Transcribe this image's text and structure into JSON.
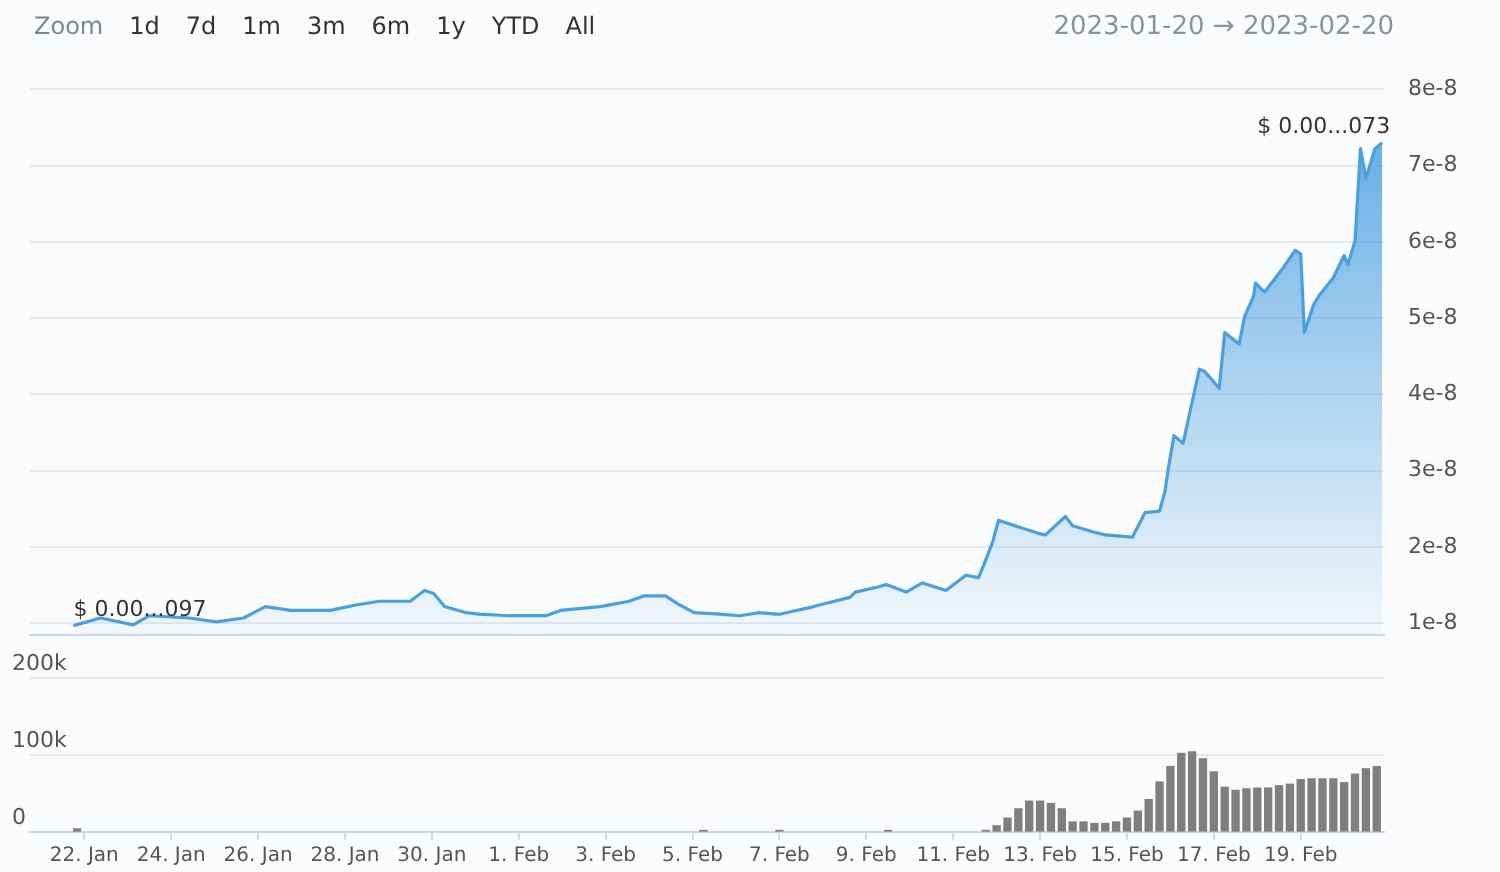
{
  "chart_data": [
    {
      "type": "area",
      "x": [
        "2023-01-21T18:00",
        "2023-01-22T09:00",
        "2023-01-23T03:00",
        "2023-01-23T12:00",
        "2023-01-24T10:00",
        "2023-01-25T01:00",
        "2023-01-25T16:00",
        "2023-01-26T04:00",
        "2023-01-26T18:00",
        "2023-01-27T16:00",
        "2023-01-28T06:00",
        "2023-01-28T19:00",
        "2023-01-29T12:00",
        "2023-01-29T20:00",
        "2023-01-30T01:00",
        "2023-01-30T07:00",
        "2023-01-30T19:00",
        "2023-01-31T02:00",
        "2023-01-31T19:00",
        "2023-02-01T15:00",
        "2023-02-01T23:00",
        "2023-02-02T21:00",
        "2023-02-03T13:00",
        "2023-02-03T21:00",
        "2023-02-04T09:00",
        "2023-02-04T17:00",
        "2023-02-05T01:00",
        "2023-02-05T15:00",
        "2023-02-06T02:00",
        "2023-02-06T13:00",
        "2023-02-06T22:00",
        "2023-02-07T00:00",
        "2023-02-07T19:00",
        "2023-02-07T22:00",
        "2023-02-08T15:00",
        "2023-02-08T18:00",
        "2023-02-09T07:00",
        "2023-02-09T11:00",
        "2023-02-09T22:00",
        "2023-02-10T07:00",
        "2023-02-10T20:00",
        "2023-02-11T07:00",
        "2023-02-11T14:00",
        "2023-02-11T17:00",
        "2023-02-11T22:00",
        "2023-02-12T01:00",
        "2023-02-12T23:00",
        "2023-02-13T03:00",
        "2023-02-13T14:00",
        "2023-02-13T18:00",
        "2023-02-14T05:00",
        "2023-02-14T12:00",
        "2023-02-15T03:00",
        "2023-02-15T10:00",
        "2023-02-15T18:00",
        "2023-02-15T21:00",
        "2023-02-15T23:00",
        "2023-02-16T02:00",
        "2023-02-16T07:00",
        "2023-02-16T16:00",
        "2023-02-16T19:00",
        "2023-02-17T03:00",
        "2023-02-17T06:00",
        "2023-02-17T14:00",
        "2023-02-17T17:00",
        "2023-02-17T22:00",
        "2023-02-17T23:00",
        "2023-02-18T04:00",
        "2023-02-18T14:00",
        "2023-02-18T21:00",
        "2023-02-19T00:00",
        "2023-02-19T02:00",
        "2023-02-19T07:00",
        "2023-02-19T10:00",
        "2023-02-19T18:00",
        "2023-02-20T00:00",
        "2023-02-20T02:00",
        "2023-02-20T06:00",
        "2023-02-20T09:00",
        "2023-02-20T12:00",
        "2023-02-20T17:00",
        "2023-02-20T21:00"
      ],
      "series": [
        {
          "color": "#4a9fe0",
          "values": [
            9.7e-09,
            1.07e-08,
            9.8e-09,
            1.1e-08,
            1.07e-08,
            1.02e-08,
            1.07e-08,
            1.22e-08,
            1.17e-08,
            1.17e-08,
            1.24e-08,
            1.29e-08,
            1.29e-08,
            1.43e-08,
            1.39e-08,
            1.22e-08,
            1.14e-08,
            1.12e-08,
            1.1e-08,
            1.1e-08,
            1.17e-08,
            1.22e-08,
            1.29e-08,
            1.36e-08,
            1.36e-08,
            1.24e-08,
            1.14e-08,
            1.12e-08,
            1.1e-08,
            1.14e-08,
            1.12e-08,
            1.12e-08,
            1.22e-08,
            1.24e-08,
            1.34e-08,
            1.41e-08,
            1.48e-08,
            1.51e-08,
            1.41e-08,
            1.53e-08,
            1.43e-08,
            1.63e-08,
            1.6e-08,
            1.77e-08,
            2.08e-08,
            2.35e-08,
            2.18e-08,
            2.16e-08,
            2.4e-08,
            2.28e-08,
            2.2e-08,
            2.16e-08,
            2.13e-08,
            2.45e-08,
            2.47e-08,
            2.73e-08,
            3.05e-08,
            3.46e-08,
            3.36e-08,
            4.33e-08,
            4.3e-08,
            4.08e-08,
            4.81e-08,
            4.66e-08,
            5.02e-08,
            5.29e-08,
            5.46e-08,
            5.34e-08,
            5.65e-08,
            5.89e-08,
            5.84e-08,
            4.81e-08,
            5.17e-08,
            5.29e-08,
            5.53e-08,
            5.82e-08,
            5.7e-08,
            6.01e-08,
            7.22e-08,
            6.83e-08,
            7.22e-08,
            7.3e-08
          ]
        }
      ],
      "xlim": [
        "2023-01-20T18:00",
        "2023-02-20T22:00"
      ],
      "ylim": [
        8.5e-09,
        8e-08
      ],
      "yticks": [
        {
          "value": 1e-08,
          "label": "1e-8"
        },
        {
          "value": 2e-08,
          "label": "2e-8"
        },
        {
          "value": 3e-08,
          "label": "3e-8"
        },
        {
          "value": 4e-08,
          "label": "4e-8"
        },
        {
          "value": 5e-08,
          "label": "5e-8"
        },
        {
          "value": 6e-08,
          "label": "6e-8"
        },
        {
          "value": 7e-08,
          "label": "7e-8"
        },
        {
          "value": 8e-08,
          "label": "8e-8"
        }
      ],
      "tick_labels": "y",
      "grid": "y",
      "legend": false,
      "marker": "none",
      "annotations": [
        "Zoom",
        "1d",
        "7d",
        "1m",
        "3m",
        "6m",
        "1y",
        "YTD",
        "All",
        "2023-01-20 → 2023-02-20",
        {
          "text": "$ 0.00...097",
          "x": "2023-01-21T18:00",
          "y": 9.7e-09
        },
        {
          "text": "$ 0.00...073",
          "x": "2023-02-20T21:00",
          "y": 7.3e-08
        }
      ]
    },
    {
      "type": "bar",
      "color": "#7f7f7f",
      "x": [
        "2023-01-21T20:00",
        "2023-02-05T06:00",
        "2023-02-07T00:00",
        "2023-02-09T12:00",
        "2023-02-11T18:00",
        "2023-02-12T00:00",
        "2023-02-12T06:00",
        "2023-02-12T12:00",
        "2023-02-12T18:00",
        "2023-02-13T00:00",
        "2023-02-13T06:00",
        "2023-02-13T12:00",
        "2023-02-13T18:00",
        "2023-02-14T00:00",
        "2023-02-14T06:00",
        "2023-02-14T12:00",
        "2023-02-14T18:00",
        "2023-02-15T00:00",
        "2023-02-15T06:00",
        "2023-02-15T12:00",
        "2023-02-15T18:00",
        "2023-02-16T00:00",
        "2023-02-16T06:00",
        "2023-02-16T12:00",
        "2023-02-16T18:00",
        "2023-02-17T00:00",
        "2023-02-17T06:00",
        "2023-02-17T12:00",
        "2023-02-17T18:00",
        "2023-02-18T00:00",
        "2023-02-18T06:00",
        "2023-02-18T12:00",
        "2023-02-18T18:00",
        "2023-02-19T00:00",
        "2023-02-19T06:00",
        "2023-02-19T12:00",
        "2023-02-19T18:00",
        "2023-02-20T00:00",
        "2023-02-20T06:00",
        "2023-02-20T12:00",
        "2023-02-20T18:00"
      ],
      "values": [
        4000,
        2000,
        2000,
        2000,
        2000,
        8000,
        18000,
        30000,
        40000,
        40000,
        37000,
        30000,
        13000,
        13000,
        11000,
        11000,
        13000,
        18000,
        27000,
        42000,
        65000,
        85000,
        102000,
        104000,
        95000,
        78000,
        58000,
        54000,
        56000,
        57000,
        57000,
        60000,
        62000,
        68000,
        69000,
        69000,
        69000,
        64000,
        75000,
        82000,
        85000
      ],
      "xlim": [
        "2023-01-20T18:00",
        "2023-02-20T22:00"
      ],
      "xticks": [
        {
          "value": "2023-01-22",
          "label": "22. Jan"
        },
        {
          "value": "2023-01-24",
          "label": "24. Jan"
        },
        {
          "value": "2023-01-26",
          "label": "26. Jan"
        },
        {
          "value": "2023-01-28",
          "label": "28. Jan"
        },
        {
          "value": "2023-01-30",
          "label": "30. Jan"
        },
        {
          "value": "2023-02-01",
          "label": "1. Feb"
        },
        {
          "value": "2023-02-03",
          "label": "3. Feb"
        },
        {
          "value": "2023-02-05",
          "label": "5. Feb"
        },
        {
          "value": "2023-02-07",
          "label": "7. Feb"
        },
        {
          "value": "2023-02-09",
          "label": "9. Feb"
        },
        {
          "value": "2023-02-11",
          "label": "11. Feb"
        },
        {
          "value": "2023-02-13",
          "label": "13. Feb"
        },
        {
          "value": "2023-02-15",
          "label": "15. Feb"
        },
        {
          "value": "2023-02-17",
          "label": "17. Feb"
        },
        {
          "value": "2023-02-19",
          "label": "19. Feb"
        }
      ],
      "ylim": [
        0,
        200000
      ],
      "yticks": [
        0,
        {
          "value": 100000,
          "label": "100k"
        },
        {
          "value": 200000,
          "label": "200k"
        }
      ],
      "grid": "y",
      "legend": false
    }
  ]
}
